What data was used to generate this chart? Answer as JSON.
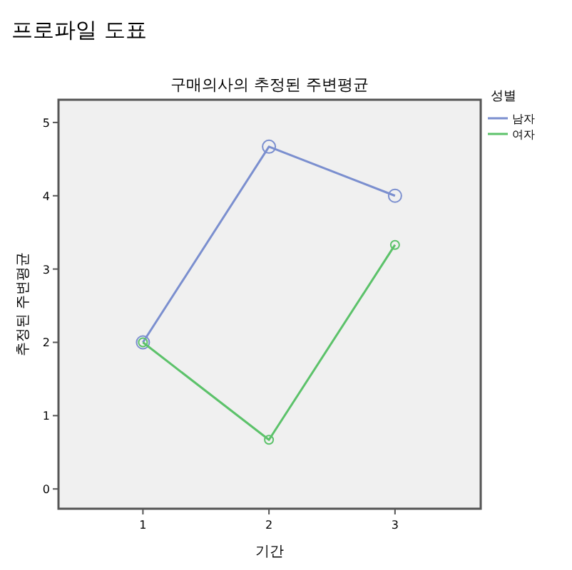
{
  "chart_data": {
    "type": "line",
    "title": "프로파일 도표",
    "subtitle": "구매의사의 추정된 주변평균",
    "xlabel": "기간",
    "ylabel": "추정된 주변평균",
    "legend_title": "성별",
    "x": [
      1,
      2,
      3
    ],
    "series": [
      {
        "name": "남자",
        "color": "#7b8fcf",
        "values": [
          2,
          4.67,
          4.0
        ]
      },
      {
        "name": "여자",
        "color": "#5cc26a",
        "values": [
          2,
          0.67,
          3.33
        ]
      }
    ],
    "xlim": [
      0.33,
      3.68
    ],
    "xticks": [
      1,
      2,
      3
    ],
    "ylim": [
      -0.27,
      5.31
    ],
    "yticks": [
      0,
      1,
      2,
      3,
      4,
      5
    ],
    "grid": false,
    "legend": "top right",
    "marker": "circle",
    "line_style": "solid"
  }
}
